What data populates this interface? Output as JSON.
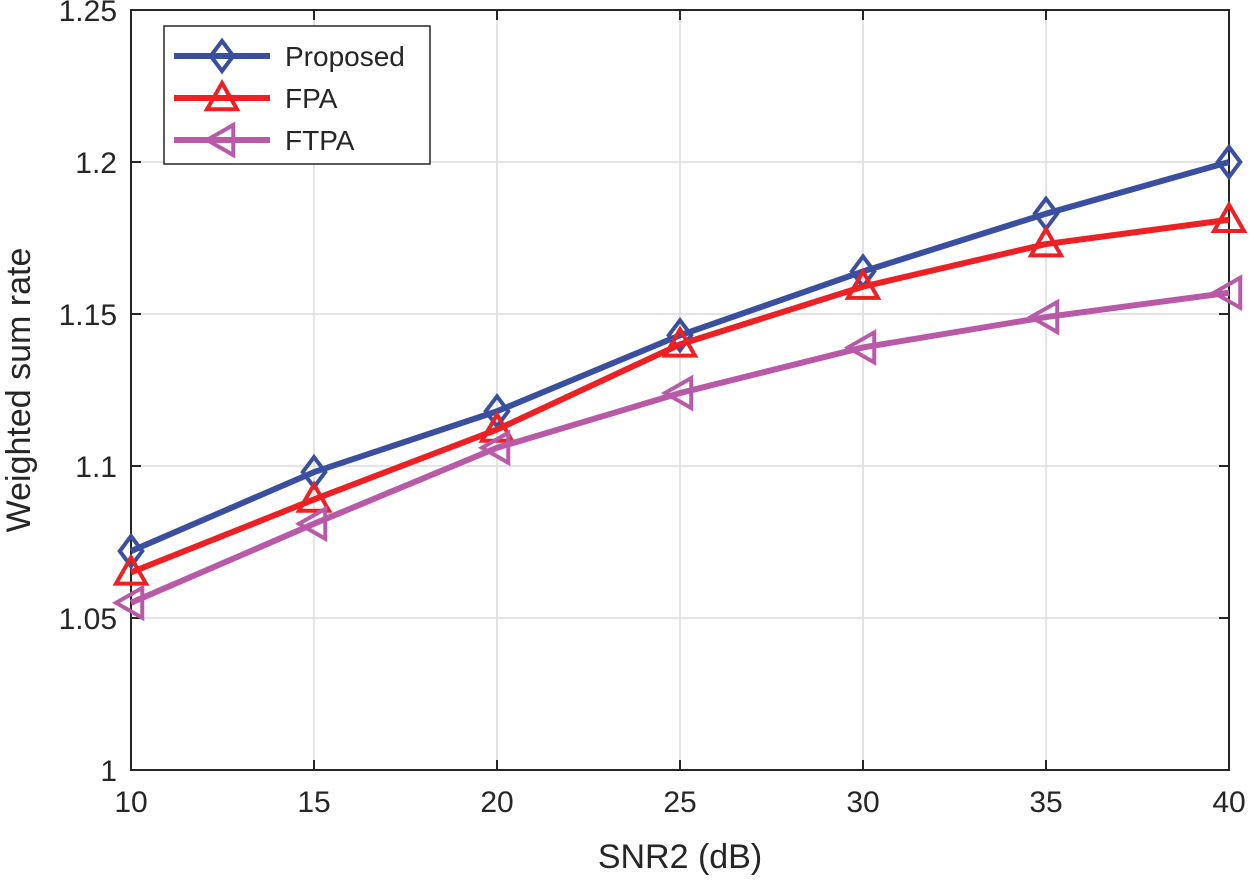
{
  "chart_data": {
    "type": "line",
    "title": "",
    "xlabel": "SNR2 (dB)",
    "ylabel": "Weighted sum rate",
    "x": [
      10,
      15,
      20,
      25,
      30,
      35,
      40
    ],
    "xlim": [
      10,
      40
    ],
    "ylim": [
      1,
      1.25
    ],
    "xticks": [
      "10",
      "15",
      "20",
      "25",
      "30",
      "35",
      "40"
    ],
    "yticks": [
      "1",
      "1.05",
      "1.1",
      "1.15",
      "1.2",
      "1.25"
    ],
    "xtick_values": [
      10,
      15,
      20,
      25,
      30,
      35,
      40
    ],
    "ytick_values": [
      1,
      1.05,
      1.1,
      1.15,
      1.2,
      1.25
    ],
    "grid": true,
    "legend_position": "top-left",
    "series": [
      {
        "name": "Proposed",
        "color": "#3a4fa0",
        "marker": "diamond",
        "values": [
          1.072,
          1.098,
          1.118,
          1.143,
          1.164,
          1.183,
          1.2
        ]
      },
      {
        "name": "FPA",
        "color": "#ed2024",
        "marker": "triangle-up",
        "values": [
          1.065,
          1.089,
          1.112,
          1.14,
          1.159,
          1.173,
          1.181
        ]
      },
      {
        "name": "FTPA",
        "color": "#b85aa8",
        "marker": "triangle-left",
        "values": [
          1.055,
          1.081,
          1.106,
          1.124,
          1.139,
          1.149,
          1.157
        ]
      }
    ]
  }
}
